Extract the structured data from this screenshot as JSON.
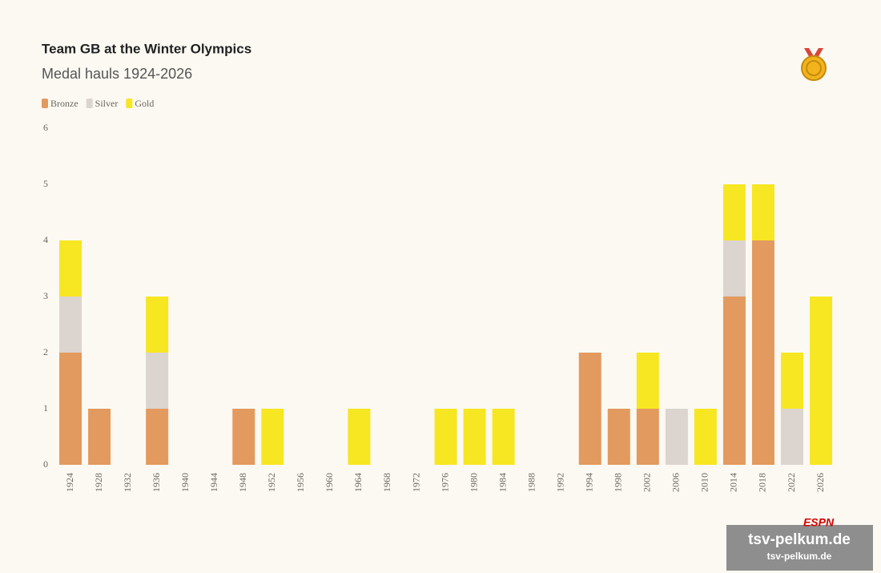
{
  "chart_data": {
    "type": "stacked-bar",
    "title": "Team GB at the Winter Olympics",
    "subtitle": "Medal hauls 1924-2026",
    "categories": [
      "1924",
      "1928",
      "1932",
      "1936",
      "1940",
      "1944",
      "1948",
      "1952",
      "1956",
      "1960",
      "1964",
      "1968",
      "1972",
      "1976",
      "1980",
      "1984",
      "1988",
      "1992",
      "1994",
      "1998",
      "2002",
      "2006",
      "2010",
      "2014",
      "2018",
      "2022",
      "2026"
    ],
    "series": [
      {
        "name": "Bronze",
        "color": "#e39a5f",
        "values": [
          2,
          1,
          0,
          1,
          0,
          0,
          1,
          0,
          0,
          0,
          0,
          0,
          0,
          0,
          0,
          0,
          0,
          0,
          2,
          1,
          1,
          0,
          0,
          3,
          4,
          0,
          0
        ]
      },
      {
        "name": "Silver",
        "color": "#dcd4cf",
        "values": [
          1,
          0,
          0,
          1,
          0,
          0,
          0,
          0,
          0,
          0,
          0,
          0,
          0,
          0,
          0,
          0,
          0,
          0,
          0,
          0,
          0,
          1,
          0,
          1,
          0,
          1,
          0
        ]
      },
      {
        "name": "Gold",
        "color": "#f7e622",
        "values": [
          1,
          0,
          0,
          1,
          0,
          0,
          0,
          1,
          0,
          0,
          1,
          0,
          0,
          1,
          1,
          1,
          0,
          0,
          0,
          0,
          1,
          0,
          1,
          1,
          1,
          1,
          3
        ]
      }
    ],
    "ylim": [
      0,
      6
    ],
    "yticks": [
      0,
      1,
      2,
      3,
      4,
      5,
      6
    ],
    "grid": false,
    "logo": "ESPN",
    "watermark": "tsv-pelkum.de",
    "watermark_sub": "tsv-pelkum.de"
  }
}
